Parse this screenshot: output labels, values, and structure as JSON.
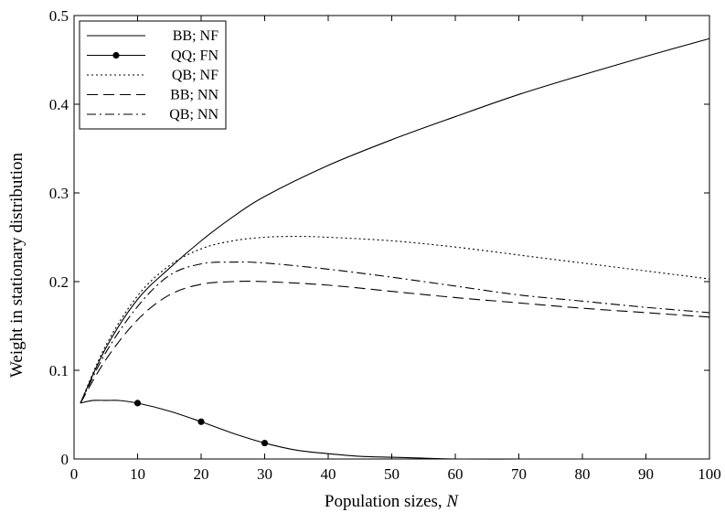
{
  "chart_data": {
    "type": "line",
    "title": "",
    "xlabel": "Population sizes, ",
    "xlabel_var": "N",
    "ylabel": "Weight in stationary distribution",
    "xlim": [
      0,
      100
    ],
    "ylim": [
      0,
      0.5
    ],
    "xticks": [
      0,
      10,
      20,
      30,
      40,
      50,
      60,
      70,
      80,
      90,
      100
    ],
    "yticks": [
      0,
      0.1,
      0.2,
      0.3,
      0.4,
      0.5
    ],
    "xtick_labels": [
      "0",
      "10",
      "20",
      "30",
      "40",
      "50",
      "60",
      "70",
      "80",
      "90",
      "100"
    ],
    "ytick_labels": [
      "0",
      "0.1",
      "0.2",
      "0.3",
      "0.4",
      "0.5"
    ],
    "grid": false,
    "legend_position": "top-left",
    "series": [
      {
        "name": "BB; NF",
        "style": "solid",
        "x": [
          1,
          5,
          10,
          15,
          20,
          25,
          30,
          40,
          50,
          60,
          70,
          80,
          90,
          100
        ],
        "y": [
          0.063,
          0.125,
          0.18,
          0.215,
          0.246,
          0.273,
          0.296,
          0.331,
          0.36,
          0.386,
          0.411,
          0.433,
          0.454,
          0.474
        ]
      },
      {
        "name": "QQ; FN",
        "style": "solid-dot",
        "x": [
          1,
          3,
          5,
          7,
          10,
          15,
          20,
          25,
          30,
          35,
          40,
          45,
          50,
          55,
          60,
          70,
          80,
          90,
          100
        ],
        "y": [
          0.063,
          0.066,
          0.066,
          0.066,
          0.063,
          0.054,
          0.042,
          0.029,
          0.018,
          0.01,
          0.006,
          0.003,
          0.002,
          0.001,
          0.0,
          0.0,
          0.0,
          0.0,
          0.0
        ],
        "markers_x": [
          10,
          20,
          30
        ],
        "markers_y": [
          0.063,
          0.042,
          0.018
        ]
      },
      {
        "name": "QB; NF",
        "style": "dotted",
        "x": [
          1,
          5,
          10,
          15,
          20,
          25,
          30,
          35,
          40,
          50,
          60,
          70,
          80,
          90,
          100
        ],
        "y": [
          0.063,
          0.128,
          0.184,
          0.218,
          0.237,
          0.246,
          0.25,
          0.251,
          0.25,
          0.246,
          0.239,
          0.23,
          0.221,
          0.212,
          0.203
        ]
      },
      {
        "name": "BB; NN",
        "style": "dashed",
        "x": [
          1,
          5,
          10,
          15,
          20,
          25,
          30,
          40,
          50,
          60,
          70,
          80,
          90,
          100
        ],
        "y": [
          0.063,
          0.112,
          0.157,
          0.185,
          0.197,
          0.2,
          0.2,
          0.196,
          0.189,
          0.182,
          0.176,
          0.17,
          0.165,
          0.16
        ]
      },
      {
        "name": "QB; NN",
        "style": "dashdot",
        "x": [
          1,
          5,
          10,
          15,
          20,
          25,
          30,
          40,
          50,
          60,
          70,
          80,
          90,
          100
        ],
        "y": [
          0.063,
          0.12,
          0.172,
          0.207,
          0.22,
          0.222,
          0.221,
          0.214,
          0.205,
          0.195,
          0.185,
          0.178,
          0.171,
          0.165
        ]
      }
    ]
  }
}
